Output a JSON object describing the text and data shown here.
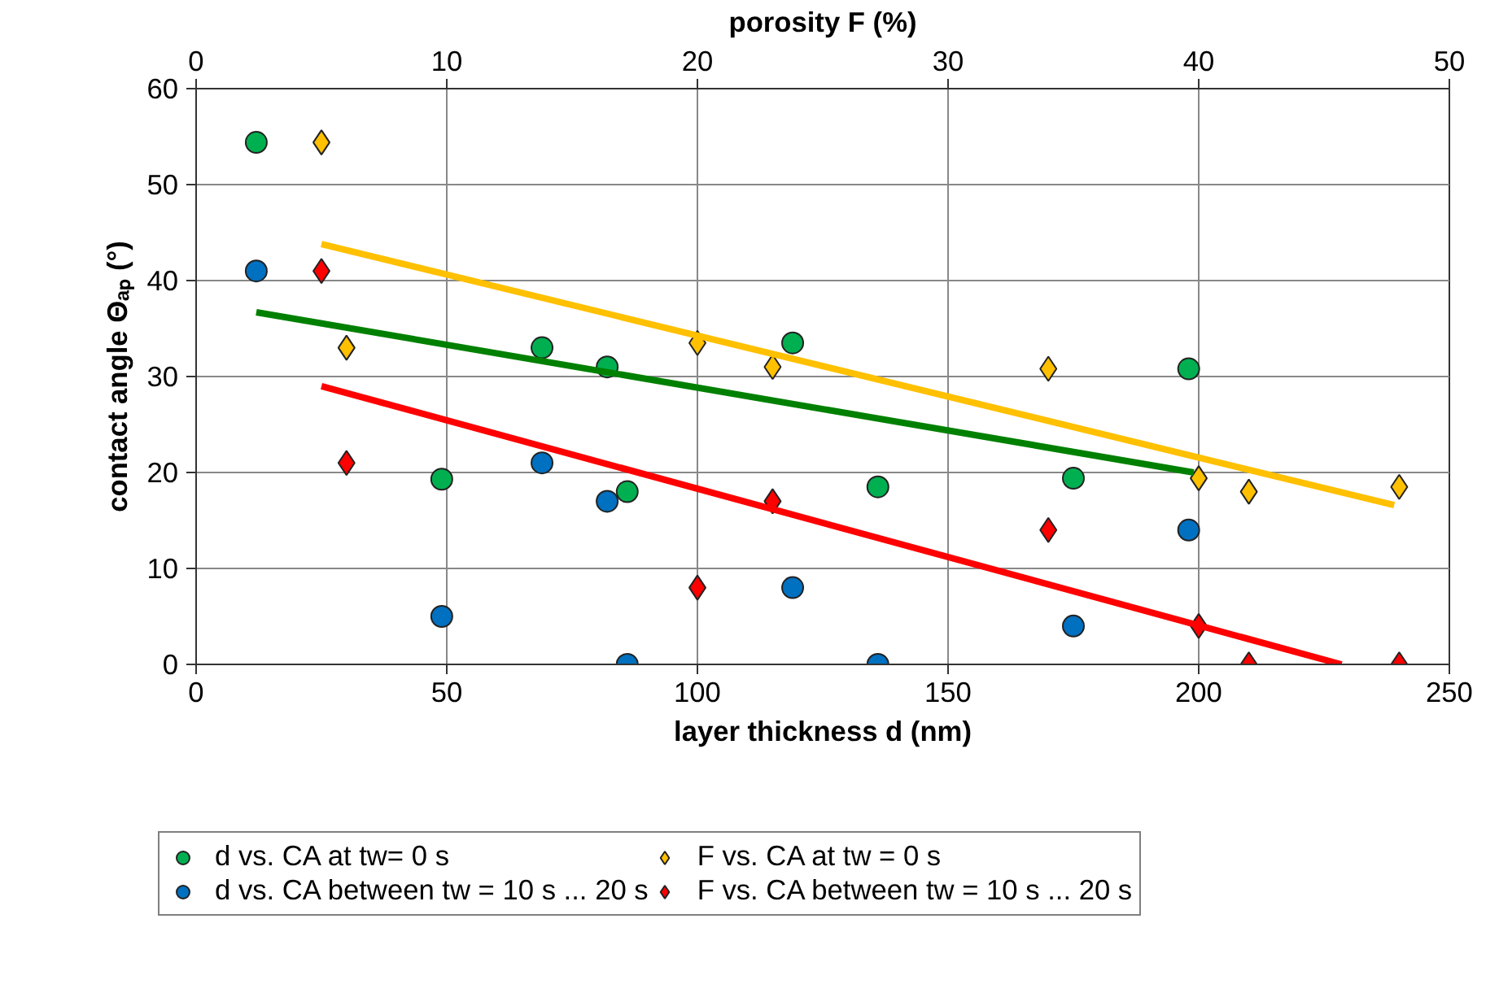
{
  "chart_data": {
    "type": "scatter",
    "xlabel": "layer thickness d (nm)",
    "x2label": "porosity F (%)",
    "ylabel": "contact angle Θₐₚ (°)",
    "xlim": [
      0,
      250
    ],
    "xticks": [
      0,
      50,
      100,
      150,
      200,
      250
    ],
    "x2lim": [
      0,
      50
    ],
    "x2ticks": [
      0,
      10,
      20,
      30,
      40,
      50
    ],
    "ylim": [
      0,
      60
    ],
    "yticks": [
      0,
      10,
      20,
      30,
      40,
      50,
      60
    ],
    "grid": true,
    "legend": "bottom",
    "series": [
      {
        "name": "d vs. CA at tw= 0 s",
        "color": "#00b050",
        "marker": "circle",
        "x": [
          12,
          49,
          69,
          82,
          86,
          119,
          136,
          175,
          198
        ],
        "values": [
          54.4,
          19.3,
          33,
          31,
          18,
          33.5,
          18.5,
          19.4,
          30.8
        ]
      },
      {
        "name": "F vs. CA at tw = 0 s",
        "color": "#ffc000",
        "marker": "diamond",
        "axis": "x2",
        "x": [
          5,
          6,
          20,
          23,
          34,
          40,
          42,
          48
        ],
        "values": [
          54.4,
          33,
          33.5,
          31,
          30.8,
          19.4,
          18,
          18.5
        ]
      },
      {
        "name": "d vs. CA between tw = 10 s ... 20 s",
        "color": "#0070c0",
        "marker": "circle",
        "x": [
          12,
          49,
          69,
          82,
          86,
          119,
          136,
          175,
          198
        ],
        "values": [
          41,
          5,
          21,
          17,
          0,
          8,
          0,
          4,
          14
        ]
      },
      {
        "name": "F vs. CA between tw = 10 s ... 20 s",
        "color": "#ff0000",
        "marker": "diamond",
        "axis": "x2",
        "x": [
          5,
          6,
          20,
          23,
          34,
          40,
          42,
          48
        ],
        "values": [
          41,
          21,
          8,
          17,
          14,
          4,
          0,
          0
        ]
      },
      {
        "type": "line",
        "color": "#008000",
        "line_style": "solid",
        "x": [
          12,
          199
        ],
        "values": [
          36.7,
          20.0
        ]
      },
      {
        "type": "line",
        "color": "#ffc000",
        "line_style": "solid",
        "axis": "x2",
        "x": [
          5,
          47.8
        ],
        "values": [
          43.8,
          16.6
        ]
      },
      {
        "type": "line",
        "color": "#ff0000",
        "line_style": "solid",
        "axis": "x2",
        "x": [
          5,
          45.7
        ],
        "values": [
          29.0,
          0
        ]
      }
    ]
  }
}
